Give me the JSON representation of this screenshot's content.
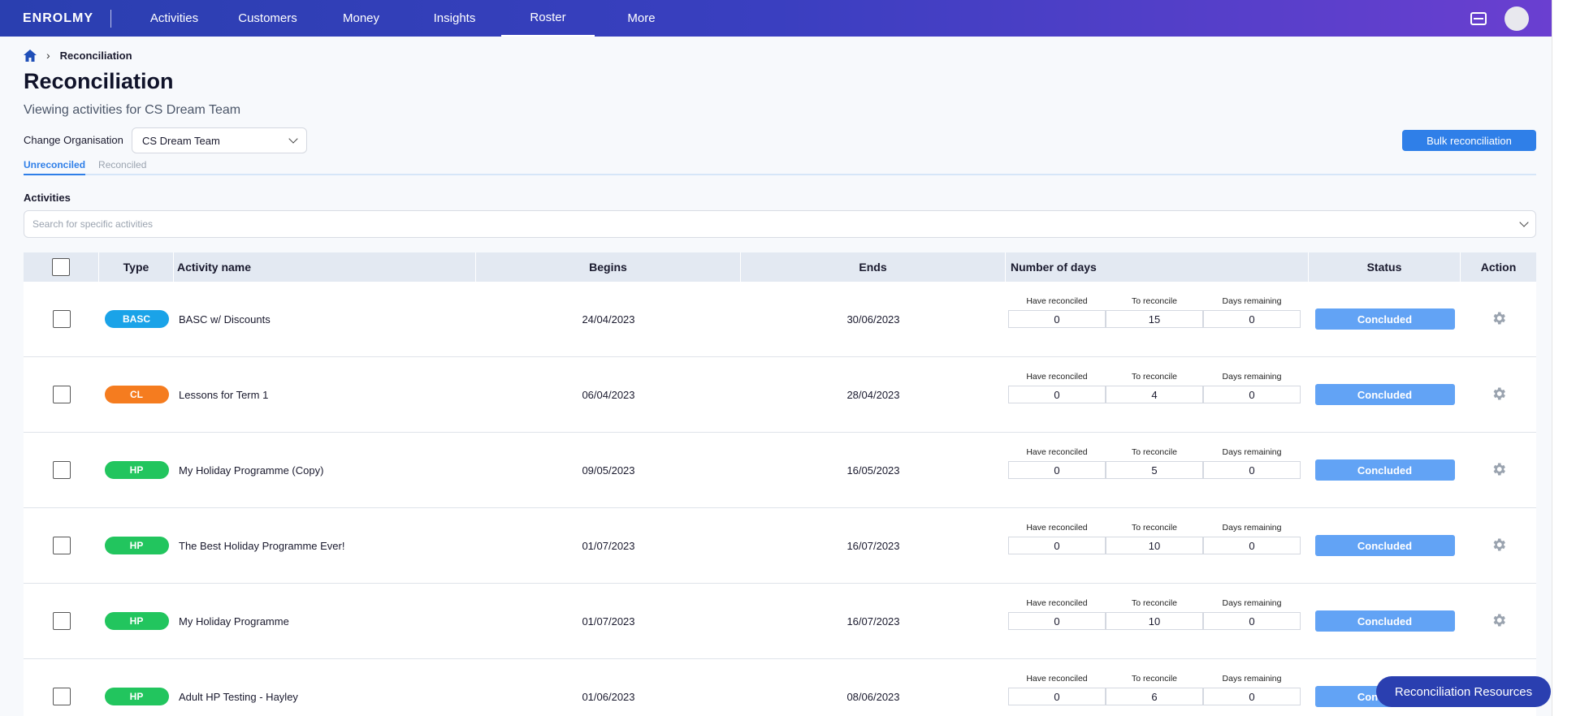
{
  "brand": {
    "logo": "ENROLMY"
  },
  "nav": {
    "items": [
      {
        "label": "Activities",
        "active": false
      },
      {
        "label": "Customers",
        "active": false
      },
      {
        "label": "Money",
        "active": false
      },
      {
        "label": "Insights",
        "active": false
      },
      {
        "label": "Roster",
        "active": true
      },
      {
        "label": "More",
        "active": false
      }
    ]
  },
  "breadcrumb": {
    "current": "Reconciliation"
  },
  "page": {
    "title": "Reconciliation",
    "subtitle": "Viewing activities for CS Dream Team",
    "org_label": "Change Organisation",
    "org_value": "CS Dream Team",
    "bulk_button": "Bulk reconciliation"
  },
  "tabs": [
    {
      "label": "Unreconciled",
      "active": true
    },
    {
      "label": "Reconciled",
      "active": false
    }
  ],
  "activities": {
    "label": "Activities",
    "search_placeholder": "Search for specific activities"
  },
  "table": {
    "headers": {
      "type": "Type",
      "name": "Activity name",
      "begins": "Begins",
      "ends": "Ends",
      "days": "Number of days",
      "status": "Status",
      "action": "Action"
    },
    "days_labels": {
      "reconciled": "Have reconciled",
      "to_reconcile": "To reconcile",
      "remaining": "Days remaining"
    },
    "rows": [
      {
        "type": "BASC",
        "type_color": "#1aa3e8",
        "name": "BASC w/ Discounts",
        "begins": "24/04/2023",
        "ends": "30/06/2023",
        "reconciled": "0",
        "to_reconcile": "15",
        "remaining": "0",
        "status": "Concluded"
      },
      {
        "type": "CL",
        "type_color": "#f57c1f",
        "name": "Lessons for Term 1",
        "begins": "06/04/2023",
        "ends": "28/04/2023",
        "reconciled": "0",
        "to_reconcile": "4",
        "remaining": "0",
        "status": "Concluded"
      },
      {
        "type": "HP",
        "type_color": "#22c55e",
        "name": "My Holiday Programme (Copy)",
        "begins": "09/05/2023",
        "ends": "16/05/2023",
        "reconciled": "0",
        "to_reconcile": "5",
        "remaining": "0",
        "status": "Concluded"
      },
      {
        "type": "HP",
        "type_color": "#22c55e",
        "name": "The Best Holiday Programme Ever!",
        "begins": "01/07/2023",
        "ends": "16/07/2023",
        "reconciled": "0",
        "to_reconcile": "10",
        "remaining": "0",
        "status": "Concluded"
      },
      {
        "type": "HP",
        "type_color": "#22c55e",
        "name": "My Holiday Programme",
        "begins": "01/07/2023",
        "ends": "16/07/2023",
        "reconciled": "0",
        "to_reconcile": "10",
        "remaining": "0",
        "status": "Concluded"
      },
      {
        "type": "HP",
        "type_color": "#22c55e",
        "name": "Adult HP Testing - Hayley",
        "begins": "01/06/2023",
        "ends": "08/06/2023",
        "reconciled": "0",
        "to_reconcile": "6",
        "remaining": "0",
        "status": "Concluded"
      }
    ]
  },
  "resources_button": "Reconciliation Resources",
  "colors": {
    "nav_start": "#2a3fb0",
    "nav_end": "#6a3fd0",
    "accent": "#2f7fe8",
    "status": "#62a3f5"
  }
}
